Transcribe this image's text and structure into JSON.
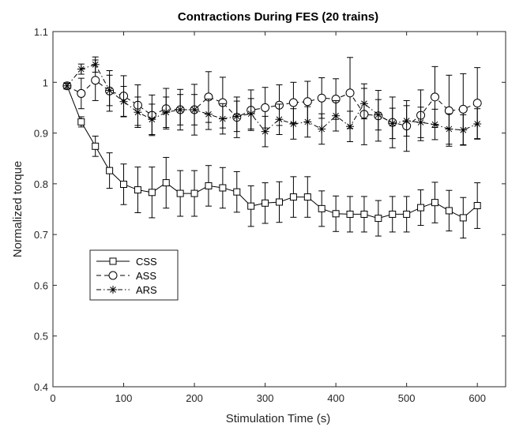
{
  "chart_data": {
    "type": "line",
    "title": "Contractions During FES (20 trains)",
    "xlabel": "Stimulation Time (s)",
    "ylabel": "Normalized torque",
    "xlim": [
      0,
      640
    ],
    "ylim": [
      0.4,
      1.1
    ],
    "xticks": [
      0,
      100,
      200,
      300,
      400,
      500,
      600
    ],
    "yticks": [
      0.4,
      0.5,
      0.6,
      0.7,
      0.8,
      0.9,
      1.0,
      1.1
    ],
    "xtick_labels": [
      "0",
      "100",
      "200",
      "300",
      "400",
      "500",
      "600"
    ],
    "ytick_labels": [
      "0.4",
      "0.5",
      "0.6",
      "0.7",
      "0.8",
      "0.9",
      "1",
      "1.1"
    ],
    "grid": false,
    "legend_position": "middle-left",
    "x": [
      20,
      40,
      60,
      80,
      100,
      120,
      140,
      160,
      180,
      200,
      220,
      240,
      260,
      280,
      300,
      320,
      340,
      360,
      380,
      400,
      420,
      440,
      460,
      480,
      500,
      520,
      540,
      560,
      580,
      600
    ],
    "series": [
      {
        "name": "CSS",
        "marker": "square",
        "linestyle": "solid",
        "values": [
          0.993,
          0.922,
          0.874,
          0.826,
          0.799,
          0.788,
          0.783,
          0.802,
          0.781,
          0.781,
          0.796,
          0.792,
          0.784,
          0.756,
          0.762,
          0.764,
          0.774,
          0.774,
          0.751,
          0.741,
          0.74,
          0.74,
          0.732,
          0.74,
          0.74,
          0.753,
          0.763,
          0.747,
          0.733,
          0.757
        ],
        "errors": [
          0.005,
          0.01,
          0.02,
          0.035,
          0.04,
          0.045,
          0.05,
          0.05,
          0.045,
          0.045,
          0.04,
          0.04,
          0.04,
          0.04,
          0.04,
          0.04,
          0.04,
          0.04,
          0.035,
          0.035,
          0.035,
          0.035,
          0.035,
          0.035,
          0.035,
          0.035,
          0.04,
          0.04,
          0.04,
          0.045
        ]
      },
      {
        "name": "ASS",
        "marker": "circle",
        "linestyle": "dashed",
        "values": [
          0.993,
          0.978,
          1.004,
          0.983,
          0.973,
          0.955,
          0.935,
          0.948,
          0.946,
          0.946,
          0.971,
          0.96,
          0.931,
          0.945,
          0.95,
          0.955,
          0.96,
          0.962,
          0.969,
          0.967,
          0.979,
          0.937,
          0.934,
          0.921,
          0.914,
          0.935,
          0.971,
          0.944,
          0.947,
          0.959
        ],
        "errors": [
          0.005,
          0.03,
          0.04,
          0.04,
          0.04,
          0.04,
          0.04,
          0.04,
          0.04,
          0.05,
          0.05,
          0.05,
          0.04,
          0.04,
          0.04,
          0.04,
          0.04,
          0.04,
          0.04,
          0.04,
          0.07,
          0.06,
          0.05,
          0.05,
          0.05,
          0.05,
          0.06,
          0.07,
          0.07,
          0.07
        ]
      },
      {
        "name": "ARS",
        "marker": "star",
        "linestyle": "dashdot",
        "values": [
          0.993,
          1.026,
          1.035,
          0.984,
          0.962,
          0.941,
          0.927,
          0.941,
          0.946,
          0.946,
          0.937,
          0.928,
          0.933,
          0.938,
          0.903,
          0.927,
          0.918,
          0.922,
          0.908,
          0.934,
          0.913,
          0.958,
          0.936,
          0.919,
          0.924,
          0.921,
          0.917,
          0.908,
          0.906,
          0.918
        ],
        "errors": [
          0.005,
          0.01,
          0.015,
          0.03,
          0.03,
          0.03,
          0.03,
          0.03,
          0.03,
          0.03,
          0.03,
          0.03,
          0.03,
          0.03,
          0.03,
          0.03,
          0.03,
          0.03,
          0.03,
          0.03,
          0.03,
          0.03,
          0.03,
          0.03,
          0.03,
          0.03,
          0.03,
          0.03,
          0.03,
          0.03
        ]
      }
    ]
  }
}
